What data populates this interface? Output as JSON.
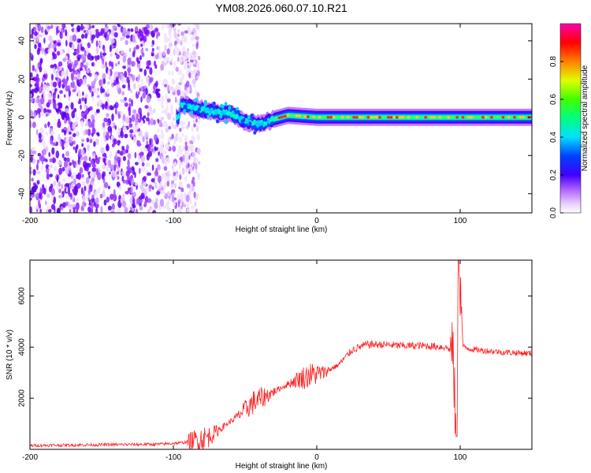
{
  "title": "YM08.2026.060.07.10.R21",
  "chart_data": [
    {
      "type": "heatmap",
      "description_of_axes": "spectrogram",
      "xlabel": "Height of straight line (km)",
      "ylabel": "Frequency (Hz)",
      "xlim": [
        -200,
        150
      ],
      "ylim": [
        -50,
        49
      ],
      "xticks": [
        -200,
        -100,
        0,
        100
      ],
      "yticks": [
        -40,
        -20,
        0,
        20,
        40
      ],
      "colorbar": {
        "label": "Normalized spectral amplitude",
        "range": [
          0,
          1
        ],
        "ticks": [
          "0.0",
          "0.2",
          "0.4",
          "0.6",
          "0.8"
        ],
        "colors": [
          "#ffffff",
          "#d9b3ff",
          "#8000ff",
          "#0000ff",
          "#00ffff",
          "#00ff00",
          "#ffff00",
          "#ff8000",
          "#ff0000",
          "#ff00ff"
        ]
      },
      "signal_track": [
        {
          "x": -95,
          "f": 7
        },
        {
          "x": -85,
          "f": 5
        },
        {
          "x": -75,
          "f": 3
        },
        {
          "x": -60,
          "f": 2
        },
        {
          "x": -50,
          "f": -2
        },
        {
          "x": -40,
          "f": -4
        },
        {
          "x": -30,
          "f": -1
        },
        {
          "x": -20,
          "f": 1
        },
        {
          "x": 0,
          "f": 0
        },
        {
          "x": 50,
          "f": 0
        },
        {
          "x": 100,
          "f": 0
        },
        {
          "x": 150,
          "f": 0
        }
      ]
    },
    {
      "type": "line",
      "xlabel": "Height of straight line (km)",
      "ylabel": "SNR (10 * v/v)",
      "xlim": [
        -200,
        150
      ],
      "ylim": [
        0,
        7400
      ],
      "xticks": [
        -200,
        -100,
        0,
        100
      ],
      "yticks": [
        2000,
        4000,
        6000
      ],
      "color": "#ff2020",
      "series": [
        {
          "name": "SNR",
          "x": [
            -200,
            -150,
            -110,
            -95,
            -85,
            -75,
            -65,
            -55,
            -45,
            -35,
            -25,
            -15,
            -5,
            5,
            15,
            25,
            35,
            45,
            60,
            75,
            90,
            95,
            97,
            99,
            102,
            110,
            130,
            150
          ],
          "values": [
            150,
            180,
            200,
            250,
            350,
            500,
            900,
            1300,
            1800,
            2100,
            2400,
            2700,
            2900,
            3000,
            3300,
            3900,
            4100,
            4100,
            4050,
            4050,
            4000,
            3800,
            600,
            7400,
            4000,
            3900,
            3800,
            3750
          ]
        }
      ]
    }
  ]
}
